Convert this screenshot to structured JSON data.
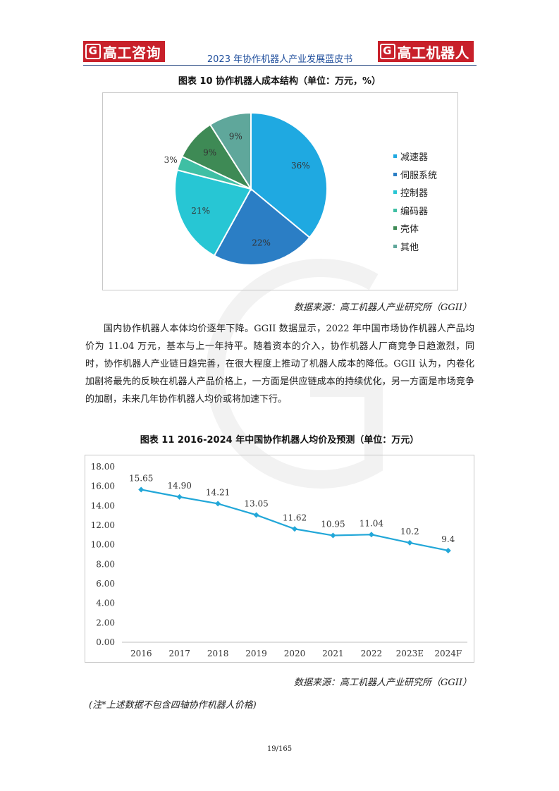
{
  "header": {
    "logo_left": "高工咨询",
    "logo_right": "高工机器人",
    "logo_letter": "G",
    "title": "2023 年协作机器人产业发展蓝皮书"
  },
  "figure10": {
    "title": "图表 10  协作机器人成本结构（单位：万元，%）",
    "source": "数据来源：高工机器人产业研究所（GGII）"
  },
  "paragraph": "国内协作机器人本体均价逐年下降。GGII 数据显示，2022 年中国市场协作机器人产品均价为 11.04 万元，基本与上一年持平。随着资本的介入，协作机器人厂商竞争日趋激烈，同时，协作机器人产业链日趋完善，在很大程度上推动了机器人成本的降低。GGII 认为，内卷化加剧将最先的反映在机器人产品价格上，一方面是供应链成本的持续优化，另一方面是市场竞争的加剧，未来几年协作机器人均价或将加速下行。",
  "figure11": {
    "title": "图表 11  2016-2024 年中国协作机器人均价及预测（单位：万元）",
    "source": "数据来源：高工机器人产业研究所（GGII）"
  },
  "note": "(注*上述数据不包含四轴协作机器人价格)",
  "page_number": "19/165",
  "chart_data": [
    {
      "type": "pie",
      "labels": [
        "减速器",
        "伺服系统",
        "控制器",
        "编码器",
        "壳体",
        "其他"
      ],
      "values": [
        36,
        22,
        21,
        3,
        9,
        9
      ],
      "data_labels": [
        "36%",
        "22%",
        "21%",
        "3%",
        "9%",
        "9%"
      ],
      "colors": [
        "#1fa9e1",
        "#2b7ec5",
        "#27c6d4",
        "#3fbfa4",
        "#3e8a55",
        "#5fa79b"
      ],
      "legend_position": "right"
    },
    {
      "type": "line",
      "categories": [
        "2016",
        "2017",
        "2018",
        "2019",
        "2020",
        "2021",
        "2022",
        "2023E",
        "2024F"
      ],
      "series": [
        {
          "values": [
            15.65,
            14.9,
            14.21,
            13.05,
            11.62,
            10.95,
            11.04,
            10.2,
            9.4
          ],
          "data_labels": [
            "15.65",
            "14.90",
            "14.21",
            "13.05",
            "11.62",
            "10.95",
            "11.04",
            "10.2",
            "9.4"
          ],
          "color": "#22a7d8"
        }
      ],
      "ylim": [
        0,
        18
      ],
      "yticks": [
        "0.00",
        "2.00",
        "4.00",
        "6.00",
        "8.00",
        "10.00",
        "12.00",
        "14.00",
        "16.00",
        "18.00"
      ],
      "grid": false,
      "legend": "none"
    }
  ]
}
